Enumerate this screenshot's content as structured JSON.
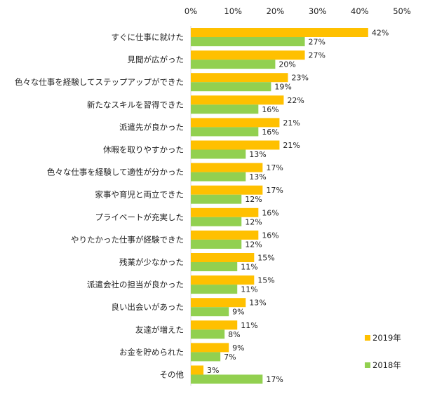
{
  "chart_data": {
    "type": "bar",
    "orientation": "horizontal",
    "categories": [
      "すぐに仕事に就けた",
      "見聞が広がった",
      "色々な仕事を経験してステップアップができた",
      "新たなスキルを習得できた",
      "派遣先が良かった",
      "休暇を取りやすかった",
      "色々な仕事を経験して適性が分かった",
      "家事や育児と両立できた",
      "プライベートが充実した",
      "やりたかった仕事が経験できた",
      "残業が少なかった",
      "派遣会社の担当が良かった",
      "良い出会いがあった",
      "友達が増えた",
      "お金を貯められた",
      "その他"
    ],
    "series": [
      {
        "name": "2019年",
        "color": "#FFC000",
        "values": [
          42,
          27,
          23,
          22,
          21,
          21,
          17,
          17,
          16,
          16,
          15,
          15,
          13,
          11,
          9,
          3
        ]
      },
      {
        "name": "2018年",
        "color": "#92D050",
        "values": [
          27,
          20,
          19,
          16,
          16,
          13,
          13,
          12,
          12,
          12,
          11,
          11,
          9,
          8,
          7,
          17
        ]
      }
    ],
    "xlim": [
      0,
      50
    ],
    "ticks": [
      "0%",
      "10%",
      "20%",
      "30%",
      "40%",
      "50%"
    ],
    "value_suffix": "%",
    "legend_position": "bottom-right",
    "grid": false,
    "title": "",
    "xlabel": "",
    "ylabel": ""
  }
}
